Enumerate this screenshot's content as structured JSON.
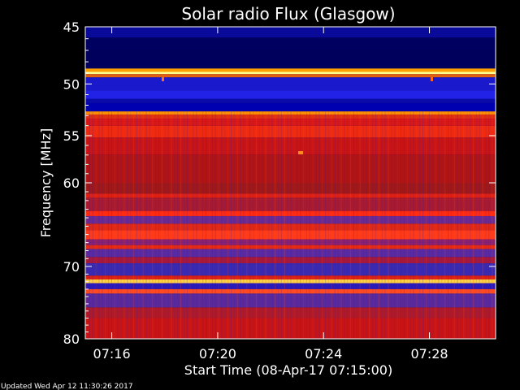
{
  "chart_data": {
    "type": "heatmap",
    "title": "Solar radio Flux (Glasgow)",
    "xlabel": "Start Time (08-Apr-17 07:15:00)",
    "ylabel": "Frequency [MHz]",
    "x_range": [
      "07:15:00",
      "07:30:30"
    ],
    "y_range": [
      45,
      80
    ],
    "y_inverted": true,
    "x_ticks": [
      "07:16",
      "07:20",
      "07:24",
      "07:28"
    ],
    "y_ticks": [
      45,
      50,
      55,
      60,
      70,
      80
    ],
    "y_scale": "log",
    "colormap": [
      "#00005f",
      "#0a0aa0",
      "#2020e0",
      "#5a2aa0",
      "#a01010",
      "#d81010",
      "#ff3010",
      "#ffa000",
      "#ffff70"
    ],
    "bands": [
      {
        "f0": 45.0,
        "f1": 45.9,
        "color": "#0a0a9a"
      },
      {
        "f0": 45.9,
        "f1": 47.0,
        "color": "#000060"
      },
      {
        "f0": 47.0,
        "f1": 48.6,
        "color": "#00005c"
      },
      {
        "f0": 48.6,
        "f1": 48.9,
        "color": "#ffa000"
      },
      {
        "f0": 48.9,
        "f1": 49.1,
        "color": "#ffff90"
      },
      {
        "f0": 49.1,
        "f1": 49.4,
        "color": "#e06010"
      },
      {
        "f0": 49.4,
        "f1": 50.6,
        "color": "#1a1acc"
      },
      {
        "f0": 50.6,
        "f1": 51.4,
        "color": "#2222e6"
      },
      {
        "f0": 51.4,
        "f1": 51.8,
        "color": "#0a0aa8"
      },
      {
        "f0": 51.8,
        "f1": 52.6,
        "color": "#0000b0"
      },
      {
        "f0": 52.6,
        "f1": 52.9,
        "color": "#ff9000"
      },
      {
        "f0": 52.9,
        "f1": 53.3,
        "color": "#e03010"
      },
      {
        "f0": 53.3,
        "f1": 54.0,
        "color": "#d81818"
      },
      {
        "f0": 54.0,
        "f1": 55.2,
        "color": "#ee2a10"
      },
      {
        "f0": 55.2,
        "f1": 57.0,
        "color": "#c81414"
      },
      {
        "f0": 57.0,
        "f1": 60.0,
        "color": "#b01414"
      },
      {
        "f0": 60.0,
        "f1": 61.2,
        "color": "#a01818"
      },
      {
        "f0": 61.2,
        "f1": 61.7,
        "color": "#e02010"
      },
      {
        "f0": 61.7,
        "f1": 63.2,
        "color": "#a81a30"
      },
      {
        "f0": 63.2,
        "f1": 63.8,
        "color": "#ff2a10"
      },
      {
        "f0": 63.8,
        "f1": 64.7,
        "color": "#6a2a90"
      },
      {
        "f0": 64.7,
        "f1": 65.5,
        "color": "#e02814"
      },
      {
        "f0": 65.5,
        "f1": 66.6,
        "color": "#ff3a18"
      },
      {
        "f0": 66.6,
        "f1": 67.3,
        "color": "#8a2070"
      },
      {
        "f0": 67.3,
        "f1": 67.8,
        "color": "#e82a10"
      },
      {
        "f0": 67.8,
        "f1": 68.8,
        "color": "#5a2aa0"
      },
      {
        "f0": 68.8,
        "f1": 69.6,
        "color": "#a81838"
      },
      {
        "f0": 69.6,
        "f1": 71.2,
        "color": "#3a2ab0"
      },
      {
        "f0": 71.2,
        "f1": 71.7,
        "color": "#e02010"
      },
      {
        "f0": 71.7,
        "f1": 72.2,
        "color": "#ffd040"
      },
      {
        "f0": 72.2,
        "f1": 73.0,
        "color": "#2a1ab8"
      },
      {
        "f0": 73.0,
        "f1": 73.6,
        "color": "#ff4a20"
      },
      {
        "f0": 73.6,
        "f1": 75.5,
        "color": "#5a2a9a"
      },
      {
        "f0": 75.5,
        "f1": 77.0,
        "color": "#b01a28"
      },
      {
        "f0": 77.0,
        "f1": 80.0,
        "color": "#c81414"
      }
    ]
  },
  "footer": {
    "updated": "Updated Wed Apr 12 11:30:26 2017"
  }
}
